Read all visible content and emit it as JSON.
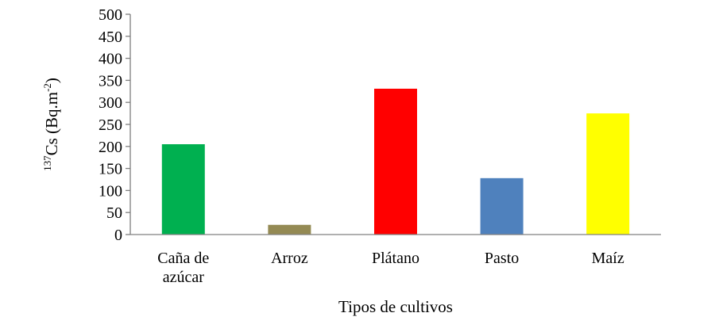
{
  "chart_data": {
    "type": "bar",
    "categories": [
      [
        "Caña de",
        "azúcar"
      ],
      [
        "Arroz"
      ],
      [
        "Plátano"
      ],
      [
        "Pasto"
      ],
      [
        "Maíz"
      ]
    ],
    "values": [
      205,
      22,
      331,
      128,
      275
    ],
    "colors": [
      "#00b050",
      "#948a54",
      "#ff0000",
      "#4f81bd",
      "#ffff00"
    ],
    "ylim": [
      0,
      500
    ],
    "yticks": [
      0,
      50,
      100,
      150,
      200,
      250,
      300,
      350,
      400,
      450,
      500
    ],
    "ylabel": {
      "sup": "137",
      "main": "Cs (Bq.m",
      "sup2": "-2",
      "end": ")"
    },
    "xlabel": "Tipos de cultivos",
    "grid": false,
    "legend": "none"
  }
}
